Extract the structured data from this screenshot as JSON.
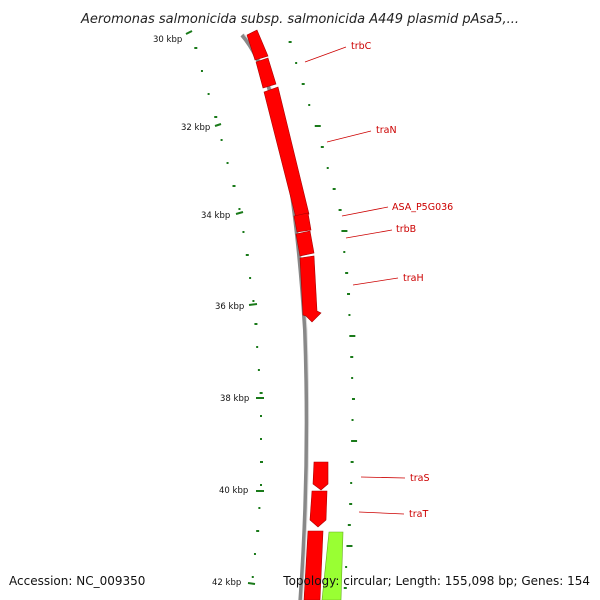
{
  "header": {
    "title": "Aeromonas salmonicida subsp. salmonicida A449 plasmid pAsa5,..."
  },
  "footer": {
    "accession": "Accession: NC_009350",
    "summary": "Topology: circular; Length: 155,098 bp; Genes: 154"
  },
  "map": {
    "ticks": [
      "30 kbp",
      "32 kbp",
      "34 kbp",
      "36 kbp",
      "38 kbp",
      "40 kbp",
      "42 kbp"
    ],
    "genes": [
      "trbC",
      "traN",
      "ASA_P5G036",
      "trbB",
      "traH",
      "traS",
      "traT"
    ]
  },
  "colors": {
    "backbone": "#888888",
    "cds_forward": "#ff0000",
    "cds_other": "#99ff33",
    "gc_track": "#1a7a1a",
    "label": "#cc0000"
  }
}
